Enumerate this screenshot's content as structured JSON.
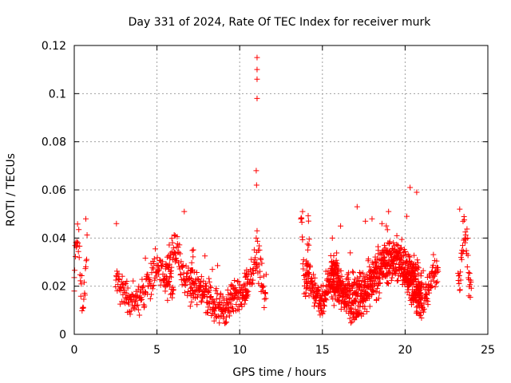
{
  "chart_data": {
    "type": "scatter",
    "title": "Day 331 of 2024, Rate Of TEC Index for receiver murk",
    "xlabel": "GPS time / hours",
    "ylabel": "ROTI / TECUs",
    "xlim": [
      0,
      25
    ],
    "ylim": [
      0,
      0.12
    ],
    "x_ticks": [
      0,
      5,
      10,
      15,
      20,
      25
    ],
    "x_tick_labels": [
      "0",
      "5",
      "10",
      "15",
      "20",
      "25"
    ],
    "y_ticks": [
      0,
      0.02,
      0.04,
      0.06,
      0.08,
      0.1,
      0.12
    ],
    "y_tick_labels": [
      "0",
      "0.02",
      "0.04",
      "0.06",
      "0.08",
      "0.1",
      "0.12"
    ],
    "grid": true,
    "marker": "+",
    "marker_color": "#ff0000",
    "segments": [
      {
        "start": 0.0,
        "end": 0.8,
        "step": 0.025,
        "base": 0.027,
        "amp": 0.011,
        "noise": 0.009
      },
      {
        "start": 2.5,
        "end": 6.0,
        "step": 0.02,
        "base": 0.02,
        "amp": 0.006,
        "noise": 0.007
      },
      {
        "start": 5.5,
        "end": 7.2,
        "step": 0.02,
        "base": 0.029,
        "amp": 0.006,
        "noise": 0.008
      },
      {
        "start": 7.0,
        "end": 10.5,
        "step": 0.015,
        "base": 0.015,
        "amp": 0.004,
        "noise": 0.007
      },
      {
        "start": 10.3,
        "end": 11.6,
        "step": 0.02,
        "base": 0.026,
        "amp": 0.007,
        "noise": 0.008
      },
      {
        "start": 13.7,
        "end": 14.2,
        "step": 0.02,
        "base": 0.03,
        "amp": 0.012,
        "noise": 0.01
      },
      {
        "start": 14.0,
        "end": 16.0,
        "step": 0.012,
        "base": 0.019,
        "amp": 0.006,
        "noise": 0.007
      },
      {
        "start": 15.5,
        "end": 21.0,
        "step": 0.008,
        "base": 0.023,
        "amp": 0.008,
        "noise": 0.009
      },
      {
        "start": 20.0,
        "end": 22.0,
        "step": 0.015,
        "base": 0.019,
        "amp": 0.006,
        "noise": 0.007
      },
      {
        "start": 23.2,
        "end": 24.0,
        "step": 0.02,
        "base": 0.033,
        "amp": 0.01,
        "noise": 0.009
      }
    ],
    "points": [
      [
        11.05,
        0.115
      ],
      [
        11.05,
        0.11
      ],
      [
        11.05,
        0.106
      ],
      [
        11.05,
        0.098
      ],
      [
        11.0,
        0.068
      ],
      [
        11.02,
        0.062
      ],
      [
        11.05,
        0.043
      ],
      [
        11.0,
        0.04
      ],
      [
        20.3,
        0.061
      ],
      [
        20.7,
        0.059
      ],
      [
        6.65,
        0.051
      ],
      [
        23.3,
        0.052
      ],
      [
        13.8,
        0.051
      ],
      [
        16.1,
        0.045
      ],
      [
        17.1,
        0.053
      ],
      [
        18.0,
        0.048
      ],
      [
        19.0,
        0.051
      ],
      [
        20.1,
        0.049
      ],
      [
        0.7,
        0.048
      ],
      [
        0.0,
        0.018
      ],
      [
        9.2,
        0.005
      ],
      [
        23.85,
        0.016
      ],
      [
        2.55,
        0.046
      ],
      [
        6.1,
        0.041
      ],
      [
        17.6,
        0.047
      ],
      [
        18.6,
        0.046
      ],
      [
        15.6,
        0.04
      ],
      [
        19.5,
        0.041
      ]
    ]
  }
}
